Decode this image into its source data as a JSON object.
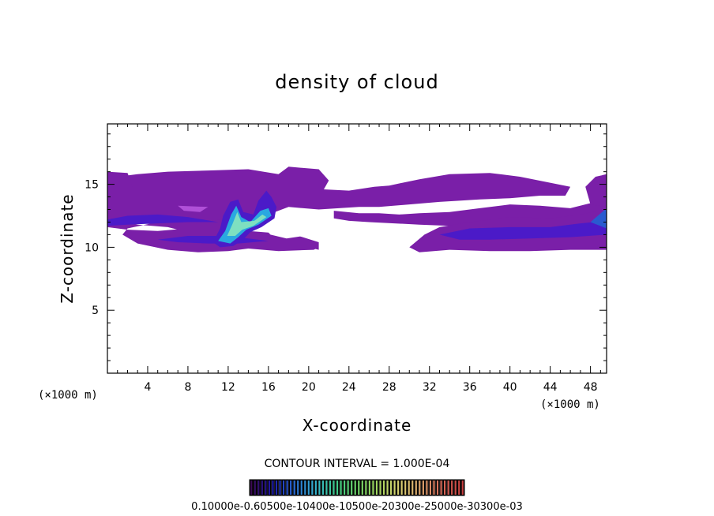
{
  "chart_data": {
    "type": "heatmap",
    "title": "density of cloud",
    "xlabel": "X-coordinate",
    "ylabel": "Z-coordinate",
    "x_unit": "(×1000 m)",
    "x_range": [
      0,
      49.6
    ],
    "y_range": [
      0,
      19.8
    ],
    "x_ticks": [
      4,
      8,
      12,
      16,
      20,
      24,
      28,
      32,
      36,
      40,
      44,
      48
    ],
    "y_ticks": [
      5,
      10,
      15
    ],
    "contour_interval_label": "CONTOUR INTERVAL = 1.000E-04",
    "colorbar_label": "0.10000e-0.60500e-10400e-10500e-20300e-25000e-30300e-03",
    "colorbar_colors": [
      "#3b0a55",
      "#1e1aa8",
      "#2a6bd8",
      "#35b0d0",
      "#3fcf8e",
      "#6fd66a",
      "#a6d860",
      "#d8d070",
      "#e0a870",
      "#d86a5a",
      "#c84040"
    ],
    "fill_color": "#7a1fa8",
    "dense_color": "#4b1ac8",
    "core_color": "#2aa8e0",
    "peak_color": "#7ee0c0",
    "cloud_regions": [
      {
        "x_range": [
          0,
          50
        ],
        "z_range": [
          9.8,
          16
        ],
        "level": "low"
      },
      {
        "x_range": [
          10,
          17
        ],
        "z_range": [
          10,
          14.5
        ],
        "level": "high"
      },
      {
        "x_range": [
          30,
          49.6
        ],
        "z_range": [
          9.8,
          12.5
        ],
        "level": "mid"
      }
    ]
  }
}
